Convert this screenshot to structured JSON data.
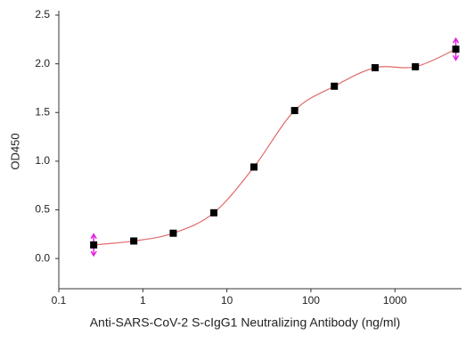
{
  "chart_data": {
    "type": "scatter",
    "x_label": "Anti-SARS-CoV-2 S-cIgG1 Neutralizing Antibody (ng/ml)",
    "y_label": "OD450",
    "x": [
      0.26,
      0.78,
      2.3,
      7,
      21,
      64,
      190,
      580,
      1750,
      5300
    ],
    "values": [
      0.14,
      0.18,
      0.26,
      0.47,
      0.94,
      1.52,
      1.77,
      1.96,
      1.97,
      2.15
    ],
    "errors": [
      0.11,
      null,
      null,
      null,
      null,
      null,
      null,
      null,
      null,
      0.11
    ],
    "color": "#000000",
    "line_color": "#e06a6a",
    "error_color": "#e020e0",
    "x_log": true,
    "xlim": [
      0.1,
      6200
    ],
    "xticks": [
      0.1,
      1,
      10,
      100,
      1000
    ],
    "ylim": [
      -0.31,
      2.5
    ],
    "yticks": [
      {
        "value": 0,
        "label": "0.0"
      },
      0.5,
      {
        "value": 1,
        "label": "1.0"
      },
      1.5,
      {
        "value": 2,
        "label": "2.0"
      },
      2.5
    ]
  }
}
